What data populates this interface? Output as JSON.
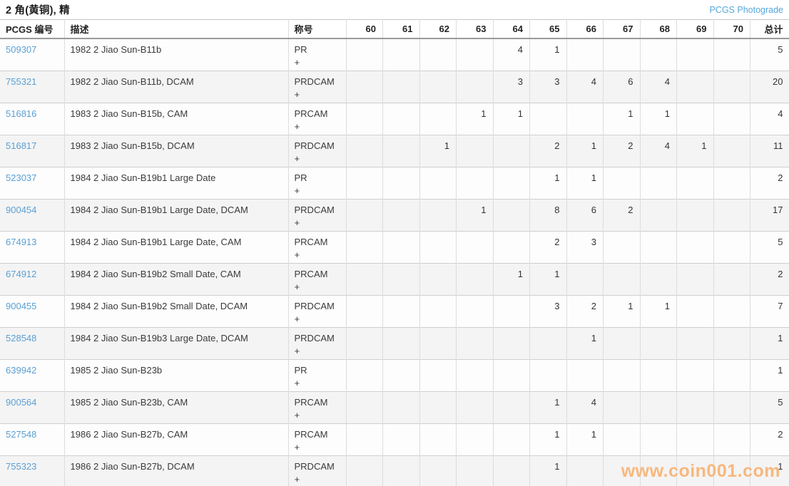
{
  "header": {
    "title": "2 角(黄铜), 精",
    "photograde_link": "PCGS Photograde"
  },
  "table": {
    "columns": {
      "pcgs_no": "PCGS 编号",
      "description": "描述",
      "designation": "称号",
      "grades": [
        "60",
        "61",
        "62",
        "63",
        "64",
        "65",
        "66",
        "67",
        "68",
        "69",
        "70"
      ],
      "total": "总计"
    },
    "rows": [
      {
        "pcgs_no": "509307",
        "description": "1982 2 Jiao Sun-B11b",
        "designation": "PR",
        "designation_plus": "+",
        "grades": [
          "",
          "",
          "",
          "",
          "4",
          "1",
          "",
          "",
          "",
          "",
          ""
        ],
        "total": "5"
      },
      {
        "pcgs_no": "755321",
        "description": "1982 2 Jiao Sun-B11b, DCAM",
        "designation": "PRDCAM",
        "designation_plus": "+",
        "grades": [
          "",
          "",
          "",
          "",
          "3",
          "3",
          "4",
          "6",
          "4",
          "",
          ""
        ],
        "total": "20"
      },
      {
        "pcgs_no": "516816",
        "description": "1983 2 Jiao Sun-B15b, CAM",
        "designation": "PRCAM",
        "designation_plus": "+",
        "grades": [
          "",
          "",
          "",
          "1",
          "1",
          "",
          "",
          "1",
          "1",
          "",
          ""
        ],
        "total": "4"
      },
      {
        "pcgs_no": "516817",
        "description": "1983 2 Jiao Sun-B15b, DCAM",
        "designation": "PRDCAM",
        "designation_plus": "+",
        "grades": [
          "",
          "",
          "1",
          "",
          "",
          "2",
          "1",
          "2",
          "4",
          "1",
          ""
        ],
        "total": "11"
      },
      {
        "pcgs_no": "523037",
        "description": "1984 2 Jiao Sun-B19b1 Large Date",
        "designation": "PR",
        "designation_plus": "+",
        "grades": [
          "",
          "",
          "",
          "",
          "",
          "1",
          "1",
          "",
          "",
          "",
          ""
        ],
        "total": "2"
      },
      {
        "pcgs_no": "900454",
        "description": "1984 2 Jiao Sun-B19b1 Large Date, DCAM",
        "designation": "PRDCAM",
        "designation_plus": "+",
        "grades": [
          "",
          "",
          "",
          "1",
          "",
          "8",
          "6",
          "2",
          "",
          "",
          ""
        ],
        "total": "17"
      },
      {
        "pcgs_no": "674913",
        "description": "1984 2 Jiao Sun-B19b1 Large Date, CAM",
        "designation": "PRCAM",
        "designation_plus": "+",
        "grades": [
          "",
          "",
          "",
          "",
          "",
          "2",
          "3",
          "",
          "",
          "",
          ""
        ],
        "total": "5"
      },
      {
        "pcgs_no": "674912",
        "description": "1984 2 Jiao Sun-B19b2 Small Date, CAM",
        "designation": "PRCAM",
        "designation_plus": "+",
        "grades": [
          "",
          "",
          "",
          "",
          "1",
          "1",
          "",
          "",
          "",
          "",
          ""
        ],
        "total": "2"
      },
      {
        "pcgs_no": "900455",
        "description": "1984 2 Jiao Sun-B19b2 Small Date, DCAM",
        "designation": "PRDCAM",
        "designation_plus": "+",
        "grades": [
          "",
          "",
          "",
          "",
          "",
          "3",
          "2",
          "1",
          "1",
          "",
          ""
        ],
        "total": "7"
      },
      {
        "pcgs_no": "528548",
        "description": "1984 2 Jiao Sun-B19b3 Large Date, DCAM",
        "designation": "PRDCAM",
        "designation_plus": "+",
        "grades": [
          "",
          "",
          "",
          "",
          "",
          "",
          "1",
          "",
          "",
          "",
          ""
        ],
        "total": "1"
      },
      {
        "pcgs_no": "639942",
        "description": "1985 2 Jiao Sun-B23b",
        "designation": "PR",
        "designation_plus": "+",
        "grades": [
          "",
          "",
          "",
          "",
          "",
          "",
          "",
          "",
          "",
          "",
          ""
        ],
        "total": "1"
      },
      {
        "pcgs_no": "900564",
        "description": "1985 2 Jiao Sun-B23b, CAM",
        "designation": "PRCAM",
        "designation_plus": "+",
        "grades": [
          "",
          "",
          "",
          "",
          "",
          "1",
          "4",
          "",
          "",
          "",
          ""
        ],
        "total": "5"
      },
      {
        "pcgs_no": "527548",
        "description": "1986 2 Jiao Sun-B27b, CAM",
        "designation": "PRCAM",
        "designation_plus": "+",
        "grades": [
          "",
          "",
          "",
          "",
          "",
          "1",
          "1",
          "",
          "",
          "",
          ""
        ],
        "total": "2"
      },
      {
        "pcgs_no": "755323",
        "description": "1986 2 Jiao Sun-B27b, DCAM",
        "designation": "PRDCAM",
        "designation_plus": "+",
        "grades": [
          "",
          "",
          "",
          "",
          "",
          "1",
          "",
          "",
          "",
          "",
          ""
        ],
        "total": "1"
      }
    ]
  },
  "watermark": "www.coin001.com",
  "colors": {
    "pcgs_number_link": "#5ba0d4",
    "photograde_link": "#55a7da",
    "watermark": "#f7b87e",
    "row_stripe": "#f4f4f4",
    "header_border": "#9a9a9a"
  }
}
